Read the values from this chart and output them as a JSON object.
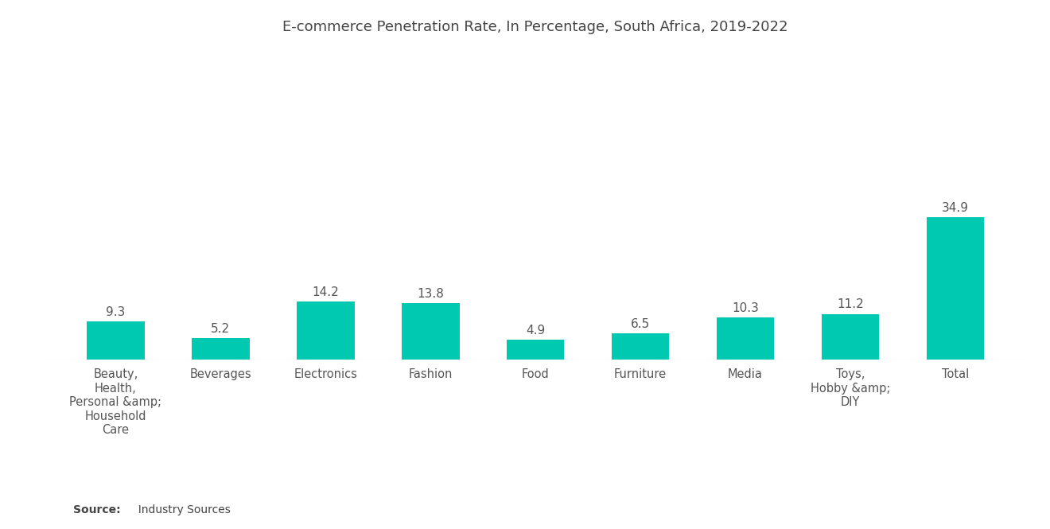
{
  "title": "E-commerce Penetration Rate, In Percentage, South Africa, 2019-2022",
  "categories": [
    "Beauty,\nHealth,\nPersonal &amp;\nHousehold\nCare",
    "Beverages",
    "Electronics",
    "Fashion",
    "Food",
    "Furniture",
    "Media",
    "Toys,\nHobby &amp;\nDIY",
    "Total"
  ],
  "values": [
    9.3,
    5.2,
    14.2,
    13.8,
    4.9,
    6.5,
    10.3,
    11.2,
    34.9
  ],
  "bar_color": "#00C9B1",
  "background_color": "#ffffff",
  "title_fontsize": 13,
  "label_fontsize": 10.5,
  "value_fontsize": 11,
  "ylim": [
    0,
    75
  ],
  "bar_width": 0.55
}
